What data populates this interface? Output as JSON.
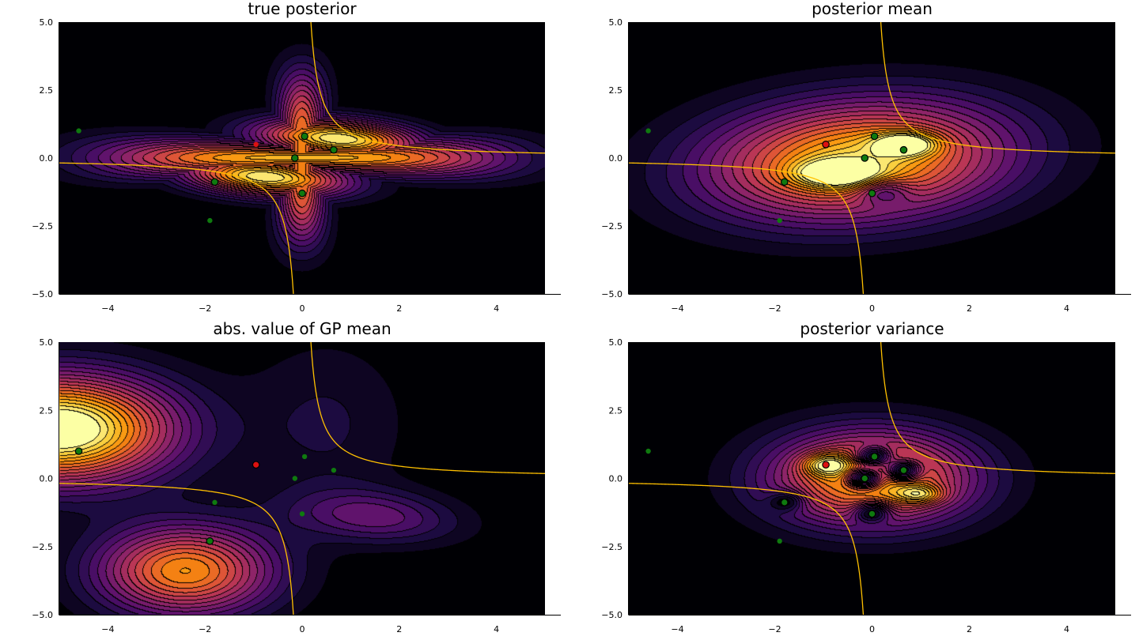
{
  "chart_data": [
    {
      "type": "heatmap",
      "key": "true",
      "title": "true posterior",
      "xlim": [
        -5,
        5
      ],
      "ylim": [
        -5,
        5
      ],
      "xticks": [
        -4,
        -2,
        0,
        2,
        4
      ],
      "yticks": [
        -5,
        -2.5,
        0,
        2.5,
        5
      ],
      "xtick_labels": [
        "−4",
        "−2",
        "0",
        "2",
        "4"
      ],
      "ytick_labels": [
        "−5.0",
        "−2.5",
        "0.0",
        "2.5",
        "5.0"
      ],
      "colormap": "inferno",
      "grid": true,
      "points": [
        {
          "x": -4.6,
          "y": 1.0,
          "color": "green",
          "size": "small"
        },
        {
          "x": -1.9,
          "y": -2.3,
          "color": "green",
          "size": "small"
        },
        {
          "x": -1.8,
          "y": -0.88,
          "color": "green",
          "size": "large"
        },
        {
          "x": -0.95,
          "y": 0.5,
          "color": "red",
          "size": "small"
        },
        {
          "x": -0.15,
          "y": 0.0,
          "color": "green",
          "size": "large"
        },
        {
          "x": 0.05,
          "y": 0.8,
          "color": "green",
          "size": "large"
        },
        {
          "x": 0.0,
          "y": -1.3,
          "color": "green",
          "size": "large"
        },
        {
          "x": 0.65,
          "y": 0.3,
          "color": "green",
          "size": "large"
        }
      ]
    },
    {
      "type": "heatmap",
      "key": "mean",
      "title": "posterior mean",
      "xlim": [
        -5,
        5
      ],
      "ylim": [
        -5,
        5
      ],
      "xticks": [
        -4,
        -2,
        0,
        2,
        4
      ],
      "yticks": [
        -5,
        -2.5,
        0,
        2.5,
        5
      ],
      "xtick_labels": [
        "−4",
        "−2",
        "0",
        "2",
        "4"
      ],
      "ytick_labels": [
        "−5.0",
        "−2.5",
        "0.0",
        "2.5",
        "5.0"
      ],
      "colormap": "inferno",
      "grid": true,
      "points": [
        {
          "x": -4.6,
          "y": 1.0,
          "color": "green",
          "size": "small"
        },
        {
          "x": -1.9,
          "y": -2.3,
          "color": "green",
          "size": "small"
        },
        {
          "x": -1.8,
          "y": -0.88,
          "color": "green",
          "size": "large"
        },
        {
          "x": -0.95,
          "y": 0.5,
          "color": "red",
          "size": "large"
        },
        {
          "x": -0.15,
          "y": 0.0,
          "color": "green",
          "size": "large"
        },
        {
          "x": 0.05,
          "y": 0.8,
          "color": "green",
          "size": "large"
        },
        {
          "x": 0.0,
          "y": -1.3,
          "color": "green",
          "size": "large"
        },
        {
          "x": 0.65,
          "y": 0.3,
          "color": "green",
          "size": "large"
        }
      ]
    },
    {
      "type": "heatmap",
      "key": "absgp",
      "title": "abs. value of GP mean",
      "xlim": [
        -5,
        5
      ],
      "ylim": [
        -5,
        5
      ],
      "xticks": [
        -4,
        -2,
        0,
        2,
        4
      ],
      "yticks": [
        -5,
        -2.5,
        0,
        2.5,
        5
      ],
      "xtick_labels": [
        "−4",
        "−2",
        "0",
        "2",
        "4"
      ],
      "ytick_labels": [
        "−5.0",
        "−2.5",
        "0.0",
        "2.5",
        "5.0"
      ],
      "colormap": "inferno",
      "grid": true,
      "points": [
        {
          "x": -4.6,
          "y": 1.0,
          "color": "green",
          "size": "large"
        },
        {
          "x": -1.9,
          "y": -2.3,
          "color": "green",
          "size": "large"
        },
        {
          "x": -1.8,
          "y": -0.88,
          "color": "green",
          "size": "small"
        },
        {
          "x": -0.95,
          "y": 0.5,
          "color": "red",
          "size": "large"
        },
        {
          "x": -0.15,
          "y": 0.0,
          "color": "green",
          "size": "small"
        },
        {
          "x": 0.05,
          "y": 0.8,
          "color": "green",
          "size": "small"
        },
        {
          "x": 0.0,
          "y": -1.3,
          "color": "green",
          "size": "small"
        },
        {
          "x": 0.65,
          "y": 0.3,
          "color": "green",
          "size": "small"
        }
      ]
    },
    {
      "type": "heatmap",
      "key": "var",
      "title": "posterior variance",
      "xlim": [
        -5,
        5
      ],
      "ylim": [
        -5,
        5
      ],
      "xticks": [
        -4,
        -2,
        0,
        2,
        4
      ],
      "yticks": [
        -5,
        -2.5,
        0,
        2.5,
        5
      ],
      "xtick_labels": [
        "−4",
        "−2",
        "0",
        "2",
        "4"
      ],
      "ytick_labels": [
        "−5.0",
        "−2.5",
        "0.0",
        "2.5",
        "5.0"
      ],
      "colormap": "inferno",
      "grid": true,
      "points": [
        {
          "x": -4.6,
          "y": 1.0,
          "color": "green",
          "size": "small"
        },
        {
          "x": -1.9,
          "y": -2.3,
          "color": "green",
          "size": "small"
        },
        {
          "x": -1.8,
          "y": -0.88,
          "color": "green",
          "size": "large"
        },
        {
          "x": -0.95,
          "y": 0.5,
          "color": "red",
          "size": "large"
        },
        {
          "x": -0.15,
          "y": 0.0,
          "color": "green",
          "size": "large"
        },
        {
          "x": 0.05,
          "y": 0.8,
          "color": "green",
          "size": "large"
        },
        {
          "x": 0.0,
          "y": -1.3,
          "color": "green",
          "size": "large"
        },
        {
          "x": 0.65,
          "y": 0.3,
          "color": "green",
          "size": "large"
        }
      ]
    }
  ],
  "colors": {
    "curve": "#ffc000",
    "point_green": "#0f7a0f",
    "point_red": "#dd1111",
    "background": "#000000"
  }
}
